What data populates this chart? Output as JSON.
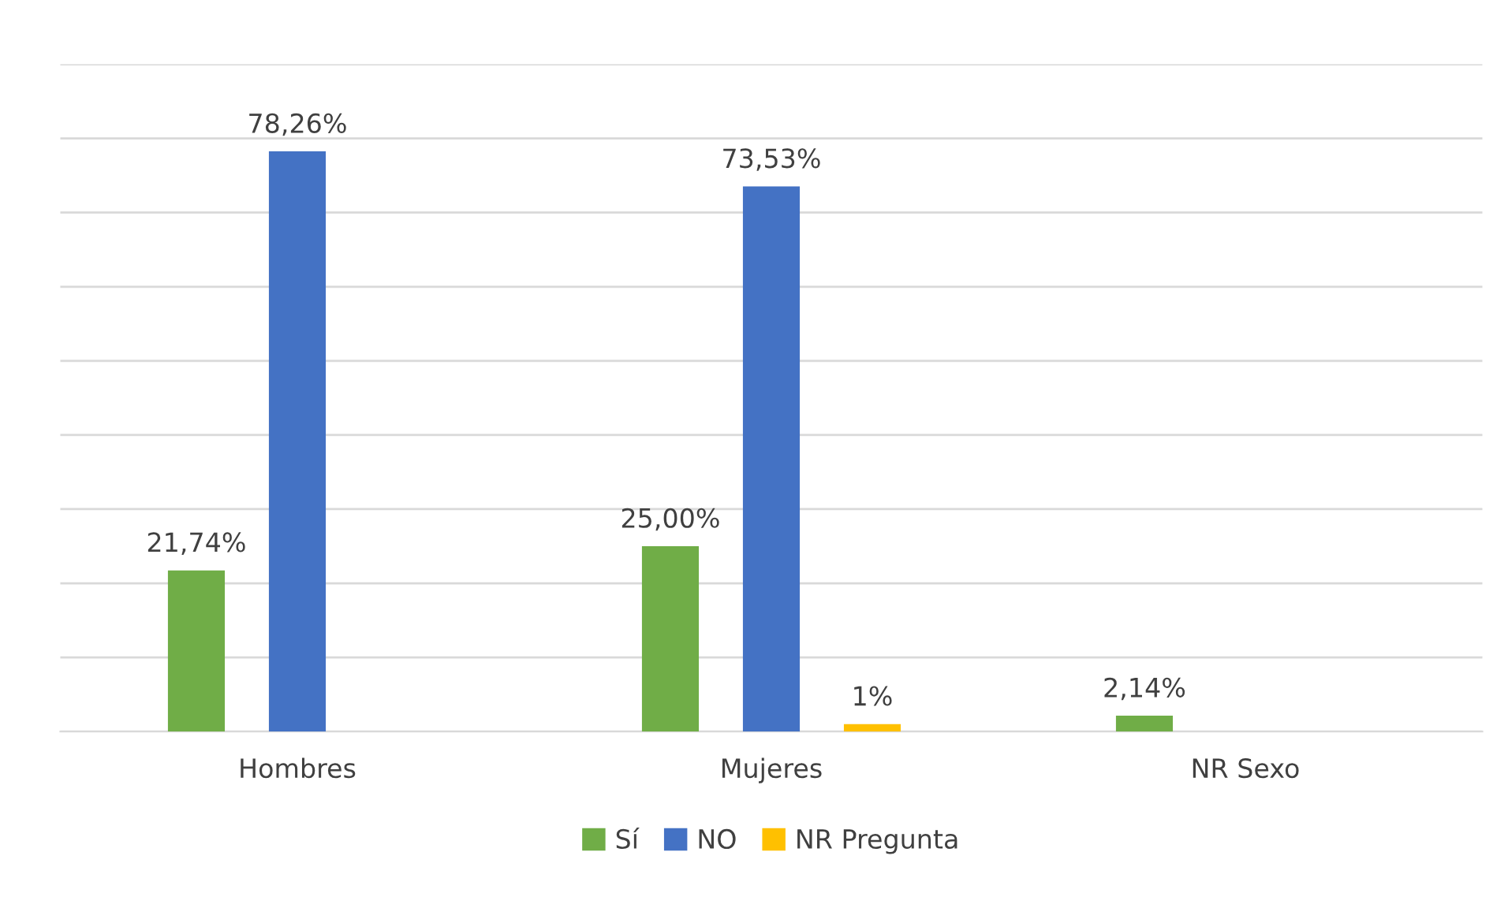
{
  "chart_data": {
    "type": "bar",
    "categories": [
      "Hombres",
      "Mujeres",
      "NR Sexo"
    ],
    "series": [
      {
        "name": "Sí",
        "color": "#70ad47",
        "values": [
          21.74,
          25.0,
          2.14
        ],
        "value_labels": [
          "21,74%",
          "25,00%",
          "2,14%"
        ]
      },
      {
        "name": "NO",
        "color": "#4472c4",
        "values": [
          78.26,
          73.53,
          null
        ],
        "value_labels": [
          "78,26%",
          "73,53%",
          null
        ]
      },
      {
        "name": "NR Pregunta",
        "color": "#ffc000",
        "values": [
          null,
          1,
          null
        ],
        "value_labels": [
          null,
          "1%",
          null
        ]
      }
    ],
    "ylim": [
      0,
      90
    ],
    "yticks": [
      {
        "value": 0,
        "label": null
      },
      {
        "value": 10,
        "label": null
      },
      {
        "value": 20,
        "label": null
      },
      {
        "value": 30,
        "label": null
      },
      {
        "value": 40,
        "label": null
      },
      {
        "value": 50,
        "label": null
      },
      {
        "value": 60,
        "label": null
      },
      {
        "value": 70,
        "label": null
      },
      {
        "value": 80,
        "label": null
      },
      {
        "value": 90,
        "label": null
      }
    ],
    "tick_labels": "x",
    "grid": "y",
    "legend": "bottom"
  }
}
